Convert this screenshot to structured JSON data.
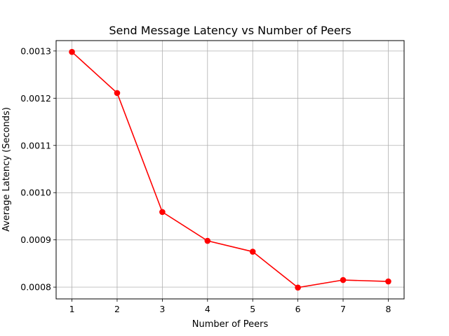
{
  "chart_data": {
    "type": "line",
    "title": "Send Message Latency vs Number of Peers",
    "xlabel": "Number of Peers",
    "ylabel": "Average Latency (Seconds)",
    "x": [
      1,
      2,
      3,
      4,
      5,
      6,
      7,
      8
    ],
    "series": [
      {
        "values": [
          0.001298,
          0.001211,
          0.000959,
          0.000898,
          0.000875,
          0.000799,
          0.000815,
          0.000812
        ],
        "color": "#ff0000",
        "marker": "circle"
      }
    ],
    "xlim": [
      0.65,
      8.35
    ],
    "ylim": [
      0.000775,
      0.001322
    ],
    "xticks": [
      "1",
      "2",
      "3",
      "4",
      "5",
      "6",
      "7",
      "8"
    ],
    "yticks": [
      "0.0008",
      "0.0009",
      "0.0010",
      "0.0011",
      "0.0012",
      "0.0013"
    ],
    "grid": true,
    "legend": "none"
  }
}
